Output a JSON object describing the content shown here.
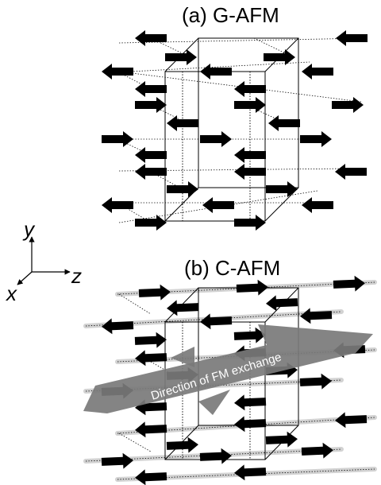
{
  "panel_a": {
    "title": "(a) G-AFM"
  },
  "panel_b": {
    "title": "(b) C-AFM",
    "band_label": "Direction of FM exchange"
  },
  "axes": {
    "x": "x",
    "y": "y",
    "z": "z"
  },
  "colors": {
    "ink": "#000000",
    "band": "#7a7a7a",
    "band_text": "#ffffff",
    "fm_line": "#d2d2d2"
  }
}
